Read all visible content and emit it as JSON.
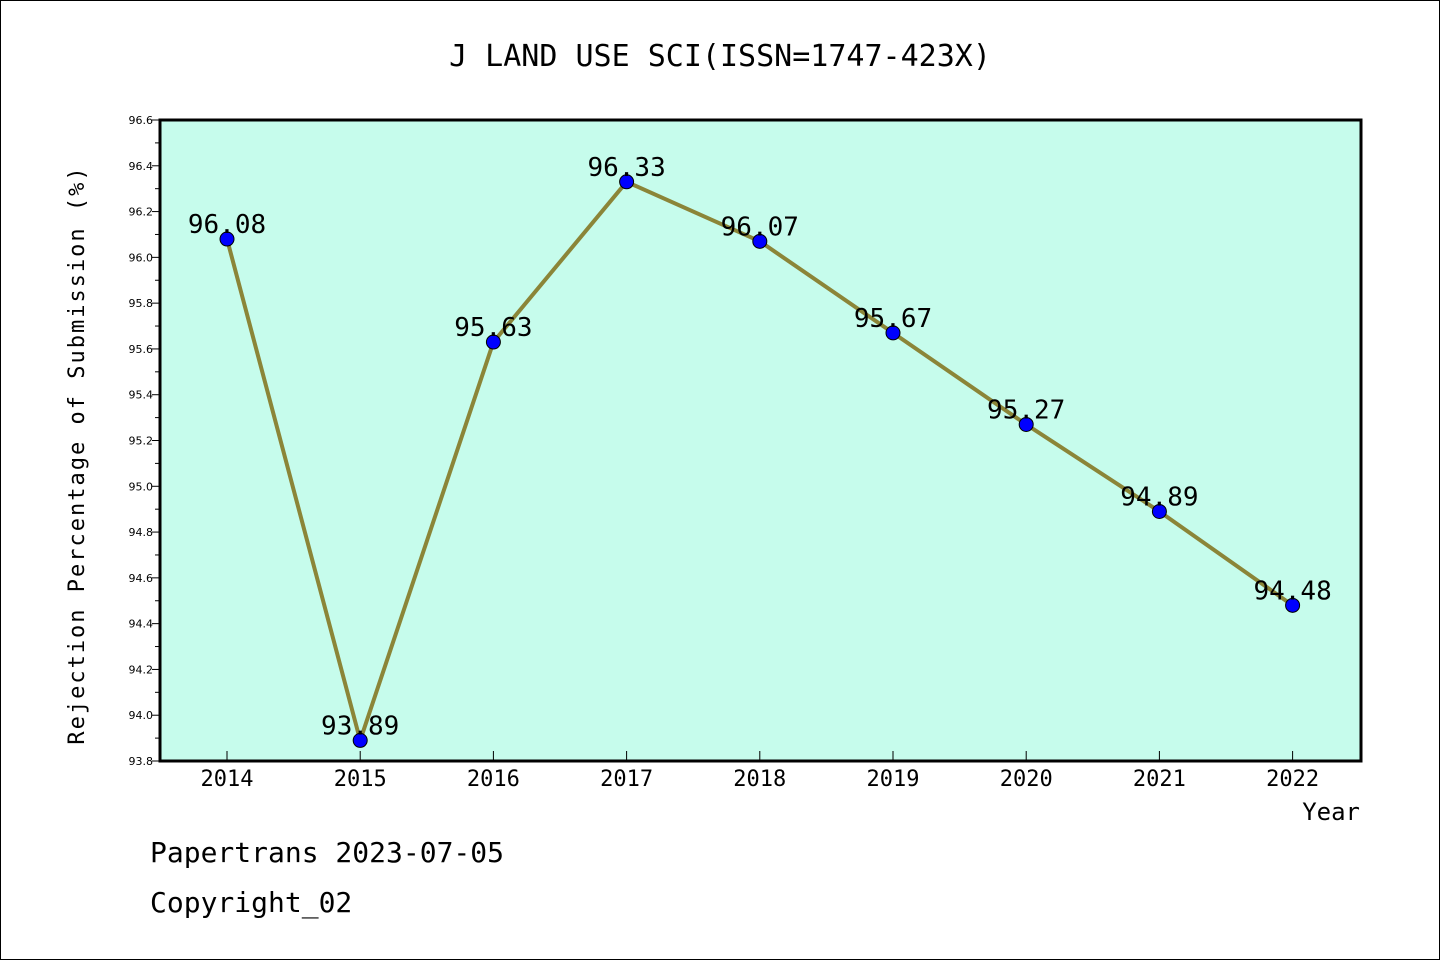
{
  "chart_data": {
    "type": "line",
    "title": "J LAND USE SCI(ISSN=1747-423X)",
    "xlabel": "Year",
    "ylabel": "Rejection Percentage of Submission (%)",
    "x": [
      "2014",
      "2015",
      "2016",
      "2017",
      "2018",
      "2019",
      "2020",
      "2021",
      "2022"
    ],
    "series": [
      {
        "values": [
          96.08,
          93.89,
          95.63,
          96.33,
          96.07,
          95.67,
          95.27,
          94.89,
          94.48
        ],
        "labels": [
          "96.08",
          "93.89",
          "95.63",
          "96.33",
          "96.07",
          "95.67",
          "95.27",
          "94.89",
          "94.48"
        ]
      }
    ],
    "ylim": [
      93.8,
      96.6
    ],
    "yticks": [
      "93.8",
      "94.0",
      "94.2",
      "94.4",
      "94.6",
      "94.8",
      "95.0",
      "95.2",
      "95.4",
      "95.6",
      "95.8",
      "96.0",
      "96.2",
      "96.4",
      "96.6"
    ],
    "grid": false,
    "colors": {
      "plot_background": "#c6fcec",
      "line": "#8b8538",
      "marker": "#0000ff"
    }
  },
  "footer": {
    "source": "Papertrans 2023-07-05",
    "copyright": "Copyright_02"
  }
}
